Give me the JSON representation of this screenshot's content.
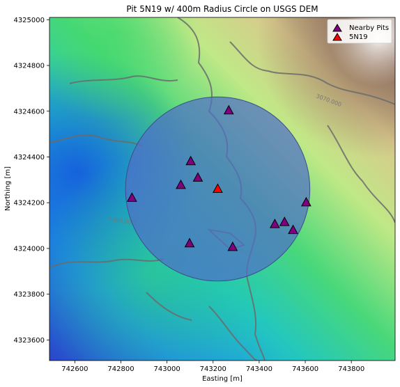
{
  "chart_data": {
    "type": "scatter",
    "title": "Pit 5N19 w/ 400m Radius Circle on USGS DEM",
    "xlabel": "Easting [m]",
    "ylabel": "Northing [m]",
    "xlim": [
      742490,
      743990
    ],
    "ylim": [
      4323510,
      4325010
    ],
    "xticks": [
      742600,
      742800,
      743000,
      743200,
      743400,
      743600,
      743800
    ],
    "yticks": [
      4323600,
      4323800,
      4324000,
      4324200,
      4324400,
      4324600,
      4324800,
      4325000
    ],
    "grid": false,
    "legend_position": "top-right",
    "background": "USGS DEM elevation raster",
    "contour_labels": [
      {
        "text": "3070.000",
        "x": 743645,
        "y": 4324660
      },
      {
        "text": "3060.000",
        "x": 742745,
        "y": 4324120
      }
    ],
    "circle": {
      "center": [
        743220,
        4324260
      ],
      "radius_m": 400,
      "color": "#4f6fc7"
    },
    "series": [
      {
        "name": "Nearby Pits",
        "color": "#800080",
        "marker": "triangle",
        "points": [
          {
            "x": 743268,
            "y": 4324603
          },
          {
            "x": 743103,
            "y": 4324381
          },
          {
            "x": 743134,
            "y": 4324309
          },
          {
            "x": 743060,
            "y": 4324277
          },
          {
            "x": 742848,
            "y": 4324221
          },
          {
            "x": 743604,
            "y": 4324201
          },
          {
            "x": 743468,
            "y": 4324106
          },
          {
            "x": 743510,
            "y": 4324115
          },
          {
            "x": 743547,
            "y": 4324080
          },
          {
            "x": 743098,
            "y": 4324022
          },
          {
            "x": 743285,
            "y": 4324006
          }
        ]
      },
      {
        "name": "5N19",
        "color": "#ff0000",
        "marker": "triangle",
        "points": [
          {
            "x": 743220,
            "y": 4324260
          }
        ]
      }
    ]
  }
}
